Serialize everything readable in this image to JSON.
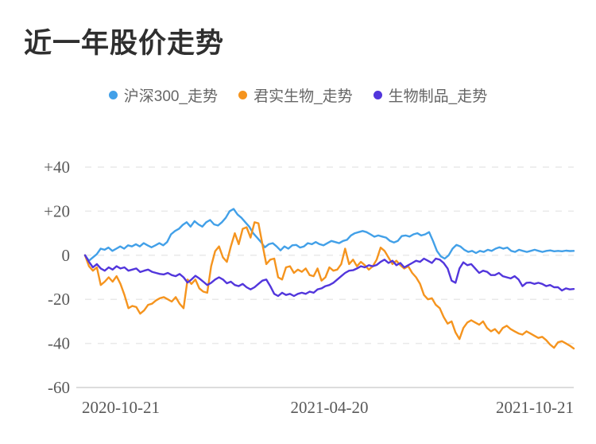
{
  "title": "近一年股价走势",
  "colors": {
    "title_text": "#2f2f2f",
    "legend_text": "#666666",
    "axis_text": "#595959",
    "gridline": "#e9e9e9",
    "axis_line": "#dcdcdc",
    "background": "#ffffff"
  },
  "chart_data": {
    "type": "line",
    "title": "近一年股价走势",
    "legend_position": "top",
    "grid": "horizontal dashed",
    "ylim": [
      -60,
      40
    ],
    "y_tick_labels": [
      "+40",
      "+20",
      "0",
      "-20",
      "-40",
      "-60"
    ],
    "y_tick_values": [
      40,
      20,
      0,
      -20,
      -40,
      -60
    ],
    "x_labels": [
      "2020-10-21",
      "2021-04-20",
      "2021-10-21"
    ],
    "series": [
      {
        "name": "沪深300_走势",
        "color": "#42A0E8",
        "values": [
          0,
          -2.5,
          -1,
          0.5,
          3,
          2.5,
          3.5,
          2,
          3,
          4,
          3,
          4.5,
          4,
          5,
          4,
          5.5,
          4.5,
          3.6,
          4.5,
          5.5,
          4.5,
          6,
          9.5,
          11,
          12,
          13.8,
          15,
          13,
          15.5,
          14,
          13,
          15,
          16,
          14,
          13.5,
          15,
          17,
          20,
          21,
          18.5,
          17,
          15,
          13,
          10,
          8,
          6,
          3.6,
          5,
          5.5,
          4,
          2.2,
          4,
          3,
          4.5,
          4.7,
          3.5,
          4,
          5.5,
          5,
          6,
          5,
          4.5,
          5.5,
          6.5,
          6,
          5.5,
          6.5,
          7,
          9,
          10,
          10.5,
          11,
          10.5,
          9.5,
          8.4,
          9,
          8.5,
          8,
          6.5,
          5.8,
          6.5,
          8.7,
          9,
          8.5,
          9.5,
          10,
          9,
          9.5,
          10.5,
          6.5,
          2,
          -0.5,
          -1.5,
          0,
          3,
          4.7,
          4,
          2.5,
          1.5,
          2,
          1,
          2,
          1.5,
          2.5,
          2,
          3,
          3.6,
          3,
          3.5,
          2,
          1.5,
          2.5,
          2,
          1.5,
          2,
          2.5,
          2,
          1.5,
          2,
          2.2,
          1.8,
          2,
          1.8,
          2.1,
          1.9,
          2
        ]
      },
      {
        "name": "君实生物_走势",
        "color": "#F5941E",
        "values": [
          0,
          -5,
          -7,
          -5.5,
          -13.5,
          -12,
          -10,
          -12,
          -9.5,
          -13,
          -18,
          -24,
          -23,
          -23.5,
          -26.5,
          -25,
          -22.5,
          -22,
          -20.5,
          -19.5,
          -19,
          -20,
          -21,
          -19,
          -22,
          -24,
          -11,
          -13,
          -11,
          -15,
          -16.5,
          -17,
          -5,
          1.8,
          4,
          -1,
          -3,
          4,
          10,
          5,
          12,
          12.7,
          8,
          15,
          14.5,
          5,
          -4,
          -2,
          -1.5,
          -10,
          -11,
          -5.5,
          -5,
          -8,
          -6.5,
          -7.5,
          -6,
          -9,
          -9.5,
          -6,
          -11.5,
          -10,
          -5.5,
          -7,
          -6.5,
          -4,
          3,
          -4,
          -2,
          -5,
          -3,
          -4.5,
          -6.5,
          -5,
          -2,
          3.5,
          2,
          -1,
          -4,
          -2.5,
          -4.5,
          -6,
          -5,
          -8,
          -10,
          -13,
          -18,
          -20,
          -19.5,
          -22.5,
          -24,
          -28,
          -31,
          -30,
          -35,
          -38,
          -33,
          -30.5,
          -29.5,
          -30.5,
          -31.5,
          -30,
          -33,
          -34.5,
          -33.5,
          -35.5,
          -33,
          -32,
          -33.5,
          -34.5,
          -35.5,
          -36,
          -34.5,
          -35.5,
          -36.5,
          -37.5,
          -37,
          -38.5,
          -40.5,
          -42,
          -39.5,
          -39,
          -40,
          -41,
          -42.3
        ]
      },
      {
        "name": "生物制品_走势",
        "color": "#5236DC",
        "values": [
          0,
          -3,
          -5.5,
          -4,
          -6,
          -7,
          -5.5,
          -6.5,
          -5,
          -6,
          -5.5,
          -7,
          -6.5,
          -6,
          -7.6,
          -7,
          -6.5,
          -7.5,
          -8,
          -8.5,
          -8.7,
          -8,
          -9,
          -9.5,
          -8.5,
          -10,
          -12.4,
          -11,
          -9.3,
          -10.5,
          -12,
          -13.5,
          -12.5,
          -11,
          -10,
          -11,
          -12.7,
          -12,
          -13.5,
          -14,
          -13,
          -14.5,
          -15.5,
          -14.5,
          -13,
          -11.5,
          -11,
          -14,
          -17.5,
          -18.5,
          -17,
          -18,
          -17.5,
          -18.5,
          -17.5,
          -17,
          -17.5,
          -16.5,
          -17,
          -15.5,
          -15,
          -14,
          -13.5,
          -12.5,
          -11,
          -9.5,
          -8,
          -7,
          -6.8,
          -6,
          -5,
          -5.5,
          -4.5,
          -5,
          -4.4,
          -3,
          -2,
          -3.5,
          -2.5,
          -4.5,
          -3.5,
          -5.5,
          -4.5,
          -3.5,
          -2.5,
          -3,
          -1.5,
          -2.5,
          -3.5,
          -1.5,
          -2,
          -3.5,
          -6,
          -11.5,
          -12.5,
          -6,
          -3.2,
          -4.5,
          -4,
          -6,
          -8,
          -7,
          -7.5,
          -9,
          -9,
          -8,
          -9.5,
          -10,
          -10.5,
          -9.5,
          -11,
          -14,
          -12.5,
          -12.4,
          -13,
          -12.5,
          -13,
          -14,
          -13.5,
          -14.5,
          -14.5,
          -16,
          -15,
          -15.5,
          -15.3
        ]
      }
    ]
  }
}
